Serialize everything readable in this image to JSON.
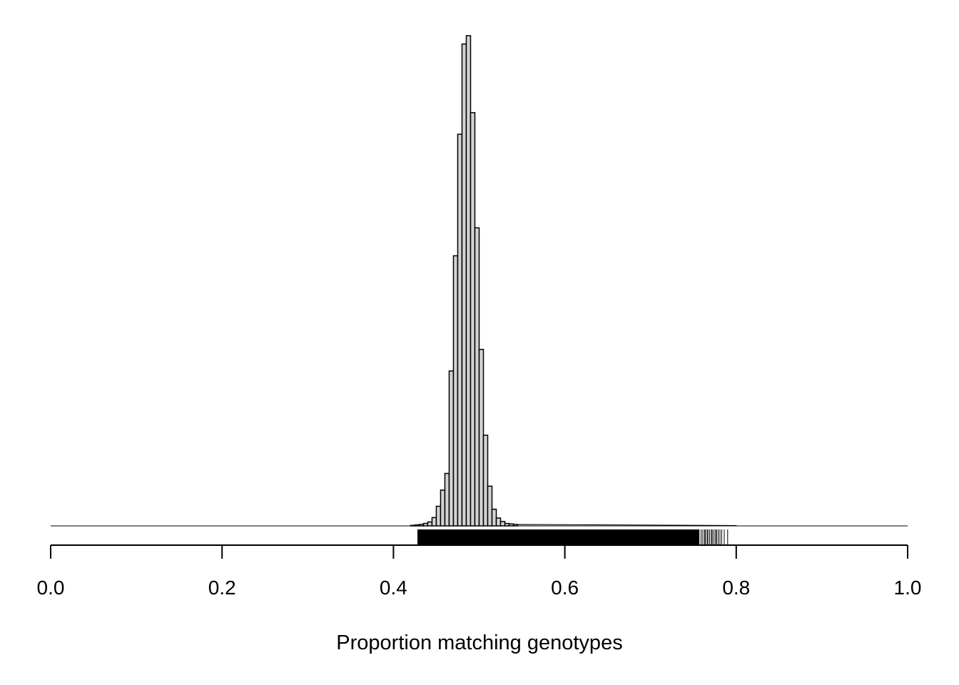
{
  "chart_data": {
    "type": "bar",
    "subtype": "histogram-with-rug",
    "title": "",
    "xlabel": "Proportion matching genotypes",
    "ylabel": "",
    "xlim": [
      0,
      1
    ],
    "ylim": [
      0,
      1
    ],
    "y_axis_shown": false,
    "x_ticks": [
      0.0,
      0.2,
      0.4,
      0.6,
      0.8,
      1.0
    ],
    "x_tick_labels": [
      "0.0",
      "0.2",
      "0.4",
      "0.6",
      "0.8",
      "1.0"
    ],
    "bin_width": 0.005,
    "bins_start": [
      0.42,
      0.425,
      0.43,
      0.435,
      0.44,
      0.445,
      0.45,
      0.455,
      0.46,
      0.465,
      0.47,
      0.475,
      0.48,
      0.485,
      0.49,
      0.495,
      0.5,
      0.505,
      0.51,
      0.515,
      0.52,
      0.525,
      0.53,
      0.535,
      0.54
    ],
    "relative_frequency": [
      0.001,
      0.002,
      0.003,
      0.005,
      0.008,
      0.017,
      0.04,
      0.073,
      0.107,
      0.316,
      0.551,
      0.799,
      0.983,
      1.0,
      0.843,
      0.608,
      0.36,
      0.185,
      0.081,
      0.034,
      0.016,
      0.009,
      0.005,
      0.004,
      0.003
    ],
    "tail": {
      "from": 0.545,
      "to": 0.8,
      "max_relative_frequency": 0.003
    },
    "baseline_span": [
      0,
      1
    ],
    "rug": {
      "dense_range": [
        0.428,
        0.757
      ],
      "sparse_values": [
        0.43,
        0.431,
        0.759,
        0.761,
        0.763,
        0.764,
        0.766,
        0.767,
        0.769,
        0.771,
        0.772,
        0.774,
        0.776,
        0.777,
        0.779,
        0.781,
        0.783,
        0.786,
        0.79
      ]
    },
    "fill_color": "#d3d3d3",
    "line_color": "#000000",
    "grid": false,
    "legend": "none"
  }
}
